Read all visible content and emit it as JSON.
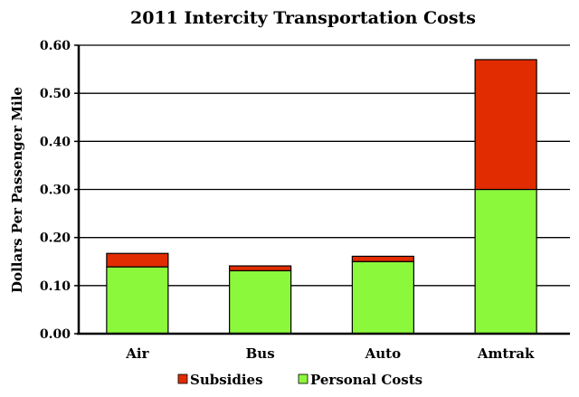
{
  "chart_data": {
    "type": "bar",
    "stacked": true,
    "title": "2011 Intercity Transportation Costs",
    "xlabel": "",
    "ylabel": "Dollars Per Passenger Mile",
    "ylim": [
      0,
      0.6
    ],
    "yticks": [
      "0.00",
      "0.10",
      "0.20",
      "0.30",
      "0.40",
      "0.50",
      "0.60"
    ],
    "grid": true,
    "legend_position": "bottom",
    "categories": [
      "Air",
      "Bus",
      "Auto",
      "Amtrak"
    ],
    "series": [
      {
        "name": "Personal Costs",
        "color": "#8cf83c",
        "values": [
          0.139,
          0.131,
          0.15,
          0.3
        ]
      },
      {
        "name": "Subsidies",
        "color": "#e02c00",
        "values": [
          0.028,
          0.01,
          0.011,
          0.27
        ]
      }
    ],
    "legend_order": [
      "Subsidies",
      "Personal Costs"
    ]
  }
}
